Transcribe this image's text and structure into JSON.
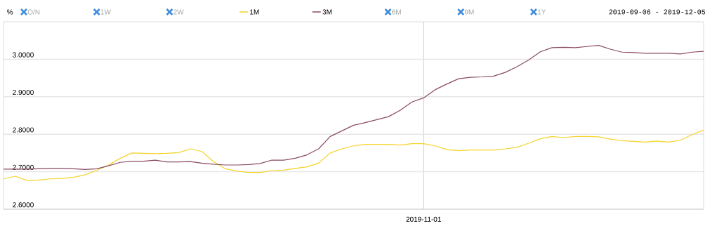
{
  "chart_data": {
    "type": "line",
    "ylabel": "%",
    "categories": [
      null,
      null,
      null,
      null,
      null,
      null,
      null,
      null,
      null,
      null,
      null,
      null,
      null,
      null,
      null,
      null,
      null,
      null,
      null,
      null,
      null,
      null,
      null,
      null,
      null,
      null,
      null,
      null,
      null,
      null,
      null,
      null,
      null,
      null,
      null,
      null,
      "2019-11-01",
      null,
      null,
      null,
      null,
      null,
      null,
      null,
      null,
      null,
      null,
      null,
      null,
      null,
      null,
      null,
      null,
      null,
      null,
      null,
      null,
      null,
      null,
      null,
      null
    ],
    "series": [
      {
        "name": "1M",
        "color": "#f5d327",
        "values": [
          2.681,
          2.688,
          2.677,
          2.678,
          2.681,
          2.682,
          2.685,
          2.692,
          2.704,
          2.718,
          2.736,
          2.75,
          2.749,
          2.748,
          2.749,
          2.751,
          2.761,
          2.754,
          2.727,
          2.708,
          2.702,
          2.698,
          2.698,
          2.703,
          2.704,
          2.709,
          2.713,
          2.723,
          2.75,
          2.761,
          2.769,
          2.773,
          2.773,
          2.773,
          2.771,
          2.775,
          2.775,
          2.769,
          2.759,
          2.756,
          2.758,
          2.758,
          2.758,
          2.761,
          2.765,
          2.776,
          2.788,
          2.794,
          2.791,
          2.794,
          2.794,
          2.793,
          2.787,
          2.783,
          2.781,
          2.779,
          2.782,
          2.779,
          2.784,
          2.799,
          2.811
        ]
      },
      {
        "name": "3M",
        "color": "#8b4a62",
        "values": [
          2.707,
          2.707,
          2.707,
          2.708,
          2.709,
          2.709,
          2.708,
          2.706,
          2.708,
          2.716,
          2.725,
          2.728,
          2.728,
          2.731,
          2.726,
          2.726,
          2.727,
          2.723,
          2.72,
          2.718,
          2.718,
          2.719,
          2.722,
          2.731,
          2.731,
          2.736,
          2.745,
          2.761,
          2.794,
          2.809,
          2.824,
          2.831,
          2.839,
          2.847,
          2.864,
          2.886,
          2.897,
          2.919,
          2.934,
          2.948,
          2.952,
          2.953,
          2.955,
          2.965,
          2.98,
          2.998,
          3.02,
          3.031,
          3.032,
          3.031,
          3.034,
          3.037,
          3.027,
          3.019,
          3.018,
          3.016,
          3.016,
          3.016,
          3.014,
          3.019,
          3.021
        ]
      }
    ],
    "ylim": [
      2.6,
      3.1
    ],
    "yticks": [
      {
        "value": 2.6,
        "label": "2.6000"
      },
      {
        "value": 2.7,
        "label": "2.7000"
      },
      {
        "value": 2.8,
        "label": "2.8000"
      },
      {
        "value": 2.9,
        "label": "2.9000"
      },
      {
        "value": 3.0,
        "label": "3.0000"
      }
    ],
    "grid": true,
    "legend": "top",
    "marker": "none",
    "line_style": "solid",
    "annotations": [
      "O/N",
      "1W",
      "2W",
      "6M",
      "9M",
      "1Y",
      "2019-09-06 - 2019-12-05"
    ]
  }
}
